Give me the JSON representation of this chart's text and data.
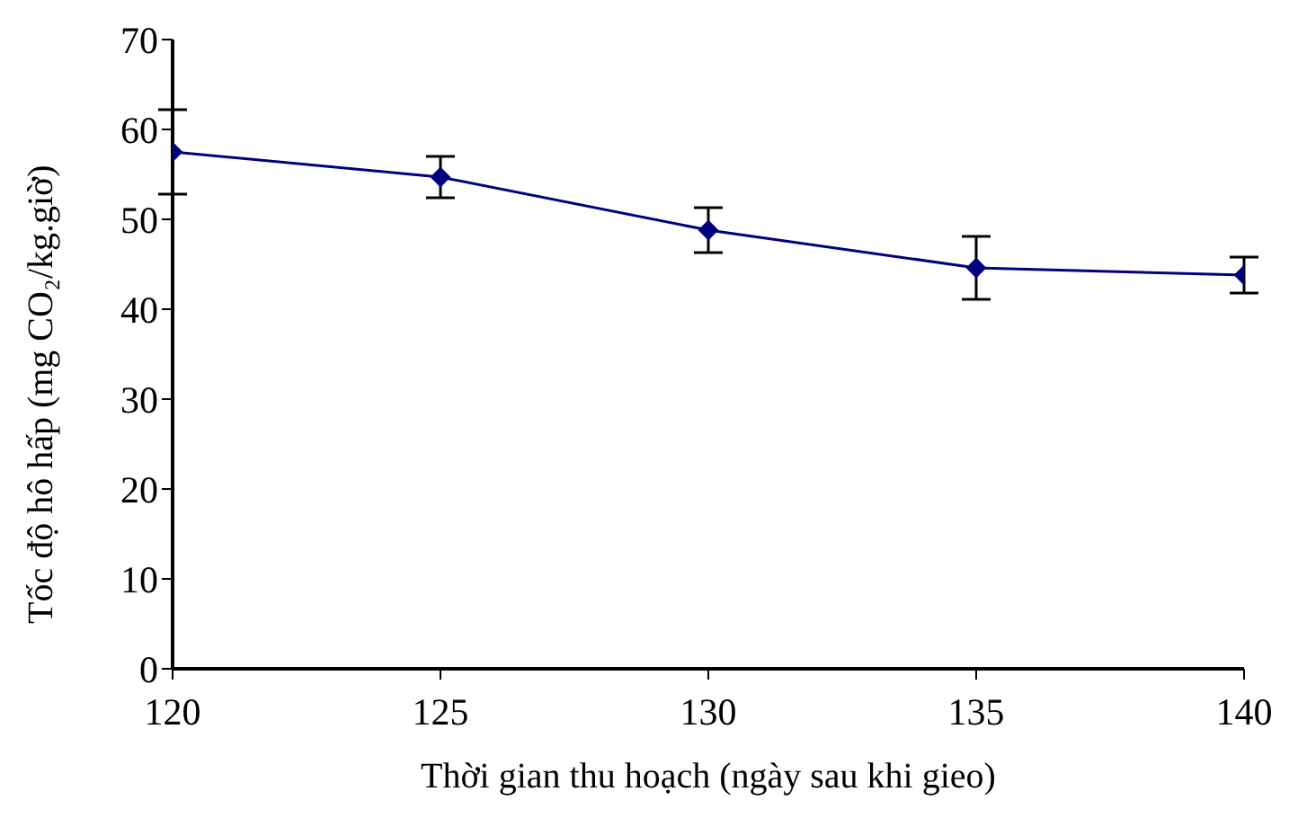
{
  "chart_data": {
    "type": "line",
    "xlabel": "Thời gian thu hoạch (ngày sau khi gieo)",
    "ylabel": "Tốc độ hô hấp (mg CO₂/kg.giờ)",
    "x": [
      120,
      125,
      130,
      135,
      140
    ],
    "series": [
      {
        "color": "#000080",
        "values": [
          57.5,
          54.7,
          48.8,
          44.6,
          43.8
        ],
        "errors": [
          4.7,
          2.3,
          2.5,
          3.5,
          2
        ]
      }
    ],
    "xlim": [
      120,
      140
    ],
    "xticks": [
      120,
      125,
      130,
      135,
      140
    ],
    "ylim": [
      0,
      70
    ],
    "yticks": [
      0,
      10,
      20,
      30,
      40,
      50,
      60,
      70
    ],
    "grid": false,
    "legend": false,
    "marker": "diamond",
    "line_style": "solid"
  }
}
